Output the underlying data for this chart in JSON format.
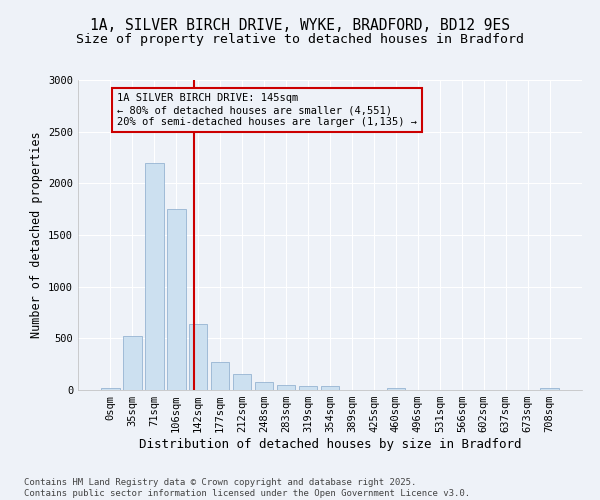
{
  "title_line1": "1A, SILVER BIRCH DRIVE, WYKE, BRADFORD, BD12 9ES",
  "title_line2": "Size of property relative to detached houses in Bradford",
  "xlabel": "Distribution of detached houses by size in Bradford",
  "ylabel": "Number of detached properties",
  "bar_color": "#cce0f0",
  "bar_edge_color": "#88aacc",
  "categories": [
    "0sqm",
    "35sqm",
    "71sqm",
    "106sqm",
    "142sqm",
    "177sqm",
    "212sqm",
    "248sqm",
    "283sqm",
    "319sqm",
    "354sqm",
    "389sqm",
    "425sqm",
    "460sqm",
    "496sqm",
    "531sqm",
    "566sqm",
    "602sqm",
    "637sqm",
    "673sqm",
    "708sqm"
  ],
  "values": [
    20,
    520,
    2200,
    1750,
    640,
    270,
    155,
    80,
    50,
    40,
    35,
    0,
    0,
    20,
    0,
    0,
    0,
    0,
    0,
    0,
    15
  ],
  "ylim": [
    0,
    3000
  ],
  "yticks": [
    0,
    500,
    1000,
    1500,
    2000,
    2500,
    3000
  ],
  "vline_x": 3.82,
  "vline_color": "#cc0000",
  "annotation_title": "1A SILVER BIRCH DRIVE: 145sqm",
  "annotation_line1": "← 80% of detached houses are smaller (4,551)",
  "annotation_line2": "20% of semi-detached houses are larger (1,135) →",
  "annotation_box_color": "#cc0000",
  "footer_line1": "Contains HM Land Registry data © Crown copyright and database right 2025.",
  "footer_line2": "Contains public sector information licensed under the Open Government Licence v3.0.",
  "background_color": "#eef2f8",
  "grid_color": "#ffffff",
  "title_fontsize": 10.5,
  "subtitle_fontsize": 9.5,
  "axis_label_fontsize": 8.5,
  "tick_fontsize": 7.5,
  "annotation_fontsize": 7.5,
  "footer_fontsize": 6.5
}
